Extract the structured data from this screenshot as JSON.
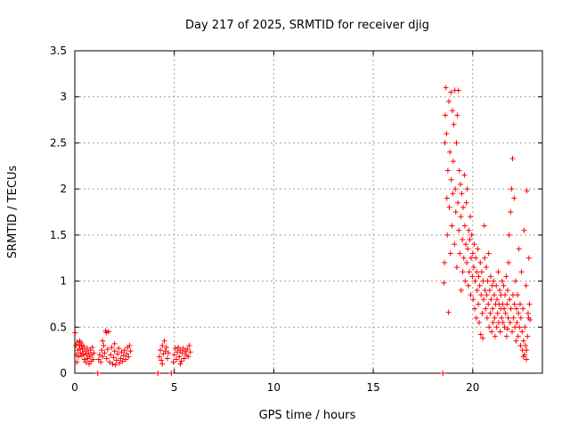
{
  "chart_data": {
    "type": "scatter",
    "title": "Day 217 of 2025, SRMTID for receiver djig",
    "xlabel": "GPS time / hours",
    "ylabel": "SRMTID / TECUs",
    "xlim": [
      0,
      23.5
    ],
    "ylim": [
      0,
      3.5
    ],
    "xticks": [
      {
        "value": 0,
        "label": "0"
      },
      {
        "value": 5,
        "label": "5"
      },
      {
        "value": 10,
        "label": "10"
      },
      {
        "value": 15,
        "label": "15"
      },
      {
        "value": 20,
        "label": "20"
      }
    ],
    "yticks": [
      {
        "value": 0,
        "label": "0"
      },
      {
        "value": 0.5,
        "label": "0.5"
      },
      {
        "value": 1,
        "label": "1"
      },
      {
        "value": 1.5,
        "label": "1.5"
      },
      {
        "value": 2,
        "label": "2"
      },
      {
        "value": 2.5,
        "label": "2.5"
      },
      {
        "value": 3,
        "label": "3"
      },
      {
        "value": 3.5,
        "label": "3.5"
      }
    ],
    "grid": true,
    "marker": "+",
    "color": "#ff0000",
    "series": [
      {
        "name": "SRMTID",
        "points": [
          [
            0.02,
            0.44
          ],
          [
            0.05,
            0.3
          ],
          [
            0.08,
            0.2
          ],
          [
            0.12,
            0.34
          ],
          [
            0.15,
            0.25
          ],
          [
            0.18,
            0.18
          ],
          [
            0.22,
            0.31
          ],
          [
            0.25,
            0.27
          ],
          [
            0.28,
            0.22
          ],
          [
            0.32,
            0.33
          ],
          [
            0.35,
            0.19
          ],
          [
            0.38,
            0.26
          ],
          [
            0.42,
            0.21
          ],
          [
            0.45,
            0.29
          ],
          [
            0.48,
            0.15
          ],
          [
            0.52,
            0.24
          ],
          [
            0.55,
            0.12
          ],
          [
            0.58,
            0.2
          ],
          [
            0.62,
            0.27
          ],
          [
            0.65,
            0.16
          ],
          [
            0.68,
            0.22
          ],
          [
            0.72,
            0.1
          ],
          [
            0.75,
            0.18
          ],
          [
            0.78,
            0.25
          ],
          [
            0.82,
            0.13
          ],
          [
            0.85,
            0.2
          ],
          [
            0.88,
            0.28
          ],
          [
            0.92,
            0.15
          ],
          [
            0.95,
            0.22
          ],
          [
            0.25,
            0.35
          ],
          [
            0.35,
            0.3
          ],
          [
            0.1,
            0.12
          ],
          [
            1.15,
            0.0
          ],
          [
            1.2,
            0.15
          ],
          [
            1.25,
            0.2
          ],
          [
            1.3,
            0.12
          ],
          [
            1.35,
            0.25
          ],
          [
            1.4,
            0.18
          ],
          [
            1.45,
            0.3
          ],
          [
            1.5,
            0.22
          ],
          [
            1.55,
            0.46
          ],
          [
            1.58,
            0.44
          ],
          [
            1.6,
            0.16
          ],
          [
            1.65,
            0.26
          ],
          [
            1.7,
            0.45
          ],
          [
            1.75,
            0.12
          ],
          [
            1.8,
            0.2
          ],
          [
            1.85,
            0.28
          ],
          [
            1.9,
            0.1
          ],
          [
            1.95,
            0.17
          ],
          [
            2.0,
            0.24
          ],
          [
            2.05,
            0.09
          ],
          [
            2.1,
            0.14
          ],
          [
            2.15,
            0.21
          ],
          [
            2.2,
            0.27
          ],
          [
            2.25,
            0.11
          ],
          [
            2.3,
            0.16
          ],
          [
            2.35,
            0.23
          ],
          [
            2.4,
            0.13
          ],
          [
            2.45,
            0.19
          ],
          [
            2.5,
            0.25
          ],
          [
            2.55,
            0.15
          ],
          [
            2.6,
            0.21
          ],
          [
            2.65,
            0.28
          ],
          [
            2.7,
            0.18
          ],
          [
            2.75,
            0.3
          ],
          [
            2.8,
            0.24
          ],
          [
            1.4,
            0.35
          ],
          [
            2.0,
            0.32
          ],
          [
            4.18,
            0.0
          ],
          [
            4.25,
            0.18
          ],
          [
            4.3,
            0.25
          ],
          [
            4.35,
            0.14
          ],
          [
            4.4,
            0.3
          ],
          [
            4.45,
            0.21
          ],
          [
            4.5,
            0.35
          ],
          [
            4.55,
            0.24
          ],
          [
            4.6,
            0.28
          ],
          [
            4.65,
            0.16
          ],
          [
            4.7,
            0.22
          ],
          [
            4.85,
            0.0
          ],
          [
            4.95,
            0.12
          ],
          [
            5.0,
            0.2
          ],
          [
            5.05,
            0.27
          ],
          [
            5.1,
            0.15
          ],
          [
            5.15,
            0.23
          ],
          [
            5.2,
            0.28
          ],
          [
            5.25,
            0.18
          ],
          [
            5.3,
            0.25
          ],
          [
            5.35,
            0.13
          ],
          [
            5.4,
            0.22
          ],
          [
            5.45,
            0.27
          ],
          [
            5.5,
            0.16
          ],
          [
            5.55,
            0.24
          ],
          [
            5.6,
            0.2
          ],
          [
            5.65,
            0.26
          ],
          [
            5.7,
            0.18
          ],
          [
            5.75,
            0.3
          ],
          [
            5.8,
            0.23
          ],
          [
            4.4,
            0.1
          ],
          [
            5.3,
            0.1
          ],
          [
            18.5,
            0.0
          ],
          [
            18.55,
            0.98
          ],
          [
            18.58,
            1.2
          ],
          [
            18.6,
            2.5
          ],
          [
            18.62,
            2.8
          ],
          [
            18.65,
            3.1
          ],
          [
            18.68,
            2.6
          ],
          [
            18.7,
            1.9
          ],
          [
            18.72,
            1.5
          ],
          [
            18.75,
            2.2
          ],
          [
            18.78,
            0.66
          ],
          [
            18.8,
            2.95
          ],
          [
            18.82,
            1.8
          ],
          [
            18.85,
            2.4
          ],
          [
            18.88,
            1.3
          ],
          [
            18.9,
            3.05
          ],
          [
            18.92,
            2.1
          ],
          [
            18.95,
            1.6
          ],
          [
            18.98,
            2.85
          ],
          [
            19.0,
            1.95
          ],
          [
            19.02,
            2.3
          ],
          [
            19.05,
            2.7
          ],
          [
            19.08,
            1.4
          ],
          [
            19.1,
            3.07
          ],
          [
            19.12,
            2.0
          ],
          [
            19.15,
            1.75
          ],
          [
            19.18,
            2.5
          ],
          [
            19.2,
            1.15
          ],
          [
            19.22,
            2.8
          ],
          [
            19.25,
            1.85
          ],
          [
            19.28,
            3.07
          ],
          [
            19.3,
            1.55
          ],
          [
            19.32,
            2.2
          ],
          [
            19.35,
            1.3
          ],
          [
            19.38,
            2.05
          ],
          [
            19.4,
            1.7
          ],
          [
            19.42,
            0.9
          ],
          [
            19.45,
            1.95
          ],
          [
            19.48,
            1.45
          ],
          [
            19.5,
            1.1
          ],
          [
            19.52,
            1.8
          ],
          [
            19.55,
            1.25
          ],
          [
            19.58,
            2.15
          ],
          [
            19.6,
            1.6
          ],
          [
            19.62,
            1.0
          ],
          [
            19.65,
            1.4
          ],
          [
            19.68,
            1.85
          ],
          [
            19.7,
            1.2
          ],
          [
            19.72,
            2.0
          ],
          [
            19.75,
            1.35
          ],
          [
            19.78,
            0.95
          ],
          [
            19.8,
            1.55
          ],
          [
            19.82,
            1.1
          ],
          [
            19.85,
            1.45
          ],
          [
            19.88,
            1.7
          ],
          [
            19.9,
            0.85
          ],
          [
            19.92,
            1.25
          ],
          [
            19.95,
            1.5
          ],
          [
            19.98,
            1.05
          ],
          [
            20.0,
            1.3
          ],
          [
            20.02,
            0.8
          ],
          [
            20.05,
            1.15
          ],
          [
            20.08,
            1.4
          ],
          [
            20.1,
            0.7
          ],
          [
            20.12,
            1.0
          ],
          [
            20.15,
            1.25
          ],
          [
            20.18,
            0.6
          ],
          [
            20.2,
            1.1
          ],
          [
            20.22,
            0.9
          ],
          [
            20.25,
            1.35
          ],
          [
            20.28,
            0.75
          ],
          [
            20.3,
            1.05
          ],
          [
            20.32,
            0.55
          ],
          [
            20.35,
            0.95
          ],
          [
            20.38,
            1.2
          ],
          [
            20.4,
            0.42
          ],
          [
            20.42,
            0.85
          ],
          [
            20.45,
            1.1
          ],
          [
            20.48,
            0.65
          ],
          [
            20.5,
            0.38
          ],
          [
            20.52,
            1.0
          ],
          [
            20.55,
            0.8
          ],
          [
            20.58,
            1.6
          ],
          [
            20.6,
            1.25
          ],
          [
            20.62,
            0.9
          ],
          [
            20.65,
            0.7
          ],
          [
            20.68,
            1.15
          ],
          [
            20.7,
            0.85
          ],
          [
            20.72,
            0.6
          ],
          [
            20.75,
            1.0
          ],
          [
            20.78,
            0.75
          ],
          [
            20.8,
            1.3
          ],
          [
            20.82,
            0.5
          ],
          [
            20.85,
            0.9
          ],
          [
            20.88,
            0.65
          ],
          [
            20.9,
            1.05
          ],
          [
            20.92,
            0.8
          ],
          [
            20.95,
            0.45
          ],
          [
            20.98,
            0.95
          ],
          [
            21.0,
            0.7
          ],
          [
            21.02,
            0.55
          ],
          [
            21.05,
            1.0
          ],
          [
            21.08,
            0.85
          ],
          [
            21.1,
            0.6
          ],
          [
            21.12,
            0.4
          ],
          [
            21.15,
            0.75
          ],
          [
            21.18,
            0.95
          ],
          [
            21.2,
            0.5
          ],
          [
            21.22,
            0.8
          ],
          [
            21.25,
            0.65
          ],
          [
            21.28,
            1.1
          ],
          [
            21.3,
            0.55
          ],
          [
            21.32,
            0.75
          ],
          [
            21.35,
            0.9
          ],
          [
            21.38,
            0.45
          ],
          [
            21.4,
            0.7
          ],
          [
            21.42,
            0.85
          ],
          [
            21.45,
            0.6
          ],
          [
            21.48,
            1.0
          ],
          [
            21.5,
            0.75
          ],
          [
            21.52,
            0.55
          ],
          [
            21.55,
            0.95
          ],
          [
            21.58,
            0.7
          ],
          [
            21.6,
            0.5
          ],
          [
            21.62,
            0.85
          ],
          [
            21.65,
            0.65
          ],
          [
            21.68,
            1.05
          ],
          [
            21.7,
            0.4
          ],
          [
            21.72,
            0.75
          ],
          [
            21.75,
            0.9
          ],
          [
            21.78,
            0.6
          ],
          [
            21.8,
            1.2
          ],
          [
            21.82,
            1.5
          ],
          [
            21.85,
            0.8
          ],
          [
            21.88,
            0.55
          ],
          [
            21.9,
            1.75
          ],
          [
            21.92,
            0.7
          ],
          [
            21.95,
            2.0
          ],
          [
            21.98,
            0.45
          ],
          [
            22.0,
            2.33
          ],
          [
            22.02,
            0.85
          ],
          [
            22.05,
            0.6
          ],
          [
            22.08,
            1.9
          ],
          [
            22.1,
            0.75
          ],
          [
            22.12,
            0.5
          ],
          [
            22.15,
            1.0
          ],
          [
            22.18,
            0.35
          ],
          [
            22.2,
            0.7
          ],
          [
            22.22,
            0.55
          ],
          [
            22.25,
            0.85
          ],
          [
            22.28,
            0.4
          ],
          [
            22.3,
            0.65
          ],
          [
            22.32,
            1.35
          ],
          [
            22.35,
            0.5
          ],
          [
            22.38,
            0.75
          ],
          [
            22.4,
            0.3
          ],
          [
            22.42,
            0.6
          ],
          [
            22.45,
            1.1
          ],
          [
            22.48,
            0.45
          ],
          [
            22.5,
            0.25
          ],
          [
            22.52,
            0.7
          ],
          [
            22.55,
            0.35
          ],
          [
            22.58,
            1.55
          ],
          [
            22.6,
            0.2
          ],
          [
            22.62,
            0.5
          ],
          [
            22.65,
            0.3
          ],
          [
            22.68,
            0.95
          ],
          [
            22.7,
            0.25
          ],
          [
            22.72,
            1.98
          ],
          [
            22.75,
            0.4
          ],
          [
            22.78,
            0.65
          ],
          [
            22.8,
            0.6
          ],
          [
            22.82,
            1.25
          ],
          [
            22.85,
            0.75
          ],
          [
            22.88,
            0.58
          ],
          [
            22.55,
            0.18
          ],
          [
            22.7,
            0.15
          ],
          [
            21.75,
            0.48
          ]
        ]
      }
    ]
  }
}
